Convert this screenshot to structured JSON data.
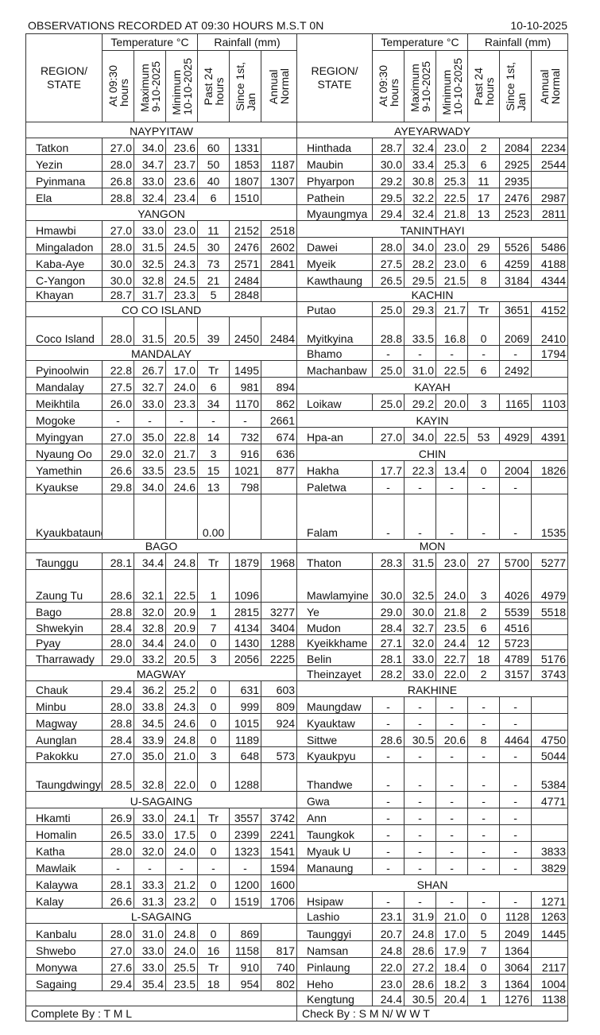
{
  "header": {
    "title": "OBSERVATIONS  RECORDED  AT  09:30  HOURS  M.S.T  0N",
    "date": "10-10-2025",
    "region_label": [
      "REGION/",
      "STATE"
    ],
    "temperature_label": "Temperature  °C",
    "rainfall_label": "Rainfall (mm)",
    "columns": [
      [
        "At 09:30",
        "hours"
      ],
      [
        "Maximum",
        "9-10-2025"
      ],
      [
        "Minimum",
        "10-10-2025"
      ],
      [
        "Past 24",
        "hours"
      ],
      [
        "Since 1st,",
        "Jan"
      ],
      [
        "Annual",
        "Normal"
      ]
    ]
  },
  "rows": [
    {
      "left": {
        "section": "NAYPYITAW"
      },
      "right": {
        "section": "AYEYARWADY"
      }
    },
    {
      "left": {
        "name": "Tatkon",
        "v": [
          "27.0",
          "34.0",
          "23.6",
          "60",
          "1331",
          ""
        ]
      },
      "right": {
        "name": "Hinthada",
        "v": [
          "28.7",
          "32.4",
          "23.0",
          "2",
          "2084",
          "2234"
        ]
      }
    },
    {
      "left": {
        "name": "Yezin",
        "v": [
          "28.0",
          "34.7",
          "23.7",
          "50",
          "1853",
          "1187"
        ]
      },
      "right": {
        "name": "Maubin",
        "v": [
          "30.0",
          "33.4",
          "25.3",
          "6",
          "2925",
          "2544"
        ]
      }
    },
    {
      "left": {
        "name": "Pyinmana",
        "v": [
          "26.8",
          "33.0",
          "23.6",
          "40",
          "1807",
          "1307"
        ]
      },
      "right": {
        "name": "Phyarpon",
        "v": [
          "29.2",
          "30.8",
          "25.3",
          "11",
          "2935",
          ""
        ]
      }
    },
    {
      "left": {
        "name": "Ela",
        "v": [
          "28.8",
          "32.4",
          "23.4",
          "6",
          "1510",
          ""
        ]
      },
      "right": {
        "name": "Pathein",
        "v": [
          "29.5",
          "32.2",
          "22.5",
          "17",
          "2476",
          "2987"
        ]
      }
    },
    {
      "left": {
        "section": "YANGON"
      },
      "right": {
        "name": "Myaungmya",
        "v": [
          "29.4",
          "32.4",
          "21.8",
          "13",
          "2523",
          "2811"
        ]
      }
    },
    {
      "left": {
        "name": "Hmawbi",
        "v": [
          "27.0",
          "33.0",
          "23.0",
          "11",
          "2152",
          "2518"
        ]
      },
      "right": {
        "section": "TANINTHAYI"
      }
    },
    {
      "left": {
        "name": "Mingaladon",
        "v": [
          "28.0",
          "31.5",
          "24.5",
          "30",
          "2476",
          "2602"
        ]
      },
      "right": {
        "name": "Dawei",
        "v": [
          "28.0",
          "34.0",
          "23.0",
          "29",
          "5526",
          "5486"
        ]
      }
    },
    {
      "left": {
        "name": "Kaba-Aye",
        "v": [
          "30.0",
          "32.5",
          "24.3",
          "73",
          "2571",
          "2841"
        ]
      },
      "right": {
        "name": "Myeik",
        "v": [
          "27.5",
          "28.2",
          "23.0",
          "6",
          "4259",
          "4188"
        ]
      }
    },
    {
      "left": {
        "name": "C-Yangon",
        "v": [
          "30.0",
          "32.8",
          "24.5",
          "21",
          "2484",
          ""
        ]
      },
      "right": {
        "name": "Kawthaung",
        "v": [
          "26.5",
          "29.5",
          "21.5",
          "8",
          "3184",
          "4344"
        ]
      }
    },
    {
      "left": {
        "name": "Khayan",
        "v": [
          "28.7",
          "31.7",
          "23.3",
          "5",
          "2848",
          ""
        ]
      },
      "right": {
        "section": "KACHIN"
      }
    },
    {
      "left": {
        "section": "CO CO  ISLAND"
      },
      "right": {
        "name": "Putao",
        "v": [
          "25.0",
          "29.3",
          "21.7",
          "Tr",
          "3651",
          "4152"
        ]
      }
    },
    {
      "left": {
        "name": "Coco Island",
        "v": [
          "28.0",
          "31.5",
          "20.5",
          "39",
          "2450",
          "2484"
        ]
      },
      "right": {
        "name": "Myitkyina",
        "v": [
          "28.8",
          "33.5",
          "16.8",
          "0",
          "2069",
          "2410"
        ]
      }
    },
    {
      "left": {
        "section": "MANDALAY"
      },
      "right": {
        "name": "Bhamo",
        "v": [
          "-",
          "-",
          "-",
          "-",
          "-",
          "1794"
        ]
      }
    },
    {
      "left": {
        "name": "Pyinoolwin",
        "v": [
          "22.8",
          "26.7",
          "17.0",
          "Tr",
          "1495",
          ""
        ]
      },
      "right": {
        "name": "Machanbaw",
        "v": [
          "25.0",
          "31.0",
          "22.5",
          "6",
          "2492",
          ""
        ]
      }
    },
    {
      "left": {
        "name": "Mandalay",
        "v": [
          "27.5",
          "32.7",
          "24.0",
          "6",
          "981",
          "894"
        ]
      },
      "right": {
        "section": "KAYAH"
      }
    },
    {
      "left": {
        "name": "Meikhtila",
        "v": [
          "26.0",
          "33.0",
          "23.3",
          "34",
          "1170",
          "862"
        ]
      },
      "right": {
        "name": "Loikaw",
        "v": [
          "25.0",
          "29.2",
          "20.0",
          "3",
          "1165",
          "1103"
        ]
      }
    },
    {
      "left": {
        "name": "Mogoke",
        "v": [
          "-",
          "-",
          "-",
          "-",
          "-",
          "2661"
        ]
      },
      "right": {
        "section": "KAYIN"
      }
    },
    {
      "left": {
        "name": "Myingyan",
        "v": [
          "27.0",
          "35.0",
          "22.8",
          "14",
          "732",
          "674"
        ]
      },
      "right": {
        "name": "Hpa-an",
        "v": [
          "27.0",
          "34.0",
          "22.5",
          "53",
          "4929",
          "4391"
        ]
      }
    },
    {
      "left": {
        "name": "Nyaung  Oo",
        "v": [
          "29.0",
          "32.0",
          "21.7",
          "3",
          "916",
          "636"
        ]
      },
      "right": {
        "section": "CHIN"
      }
    },
    {
      "left": {
        "name": "Yamethin",
        "v": [
          "26.6",
          "33.5",
          "23.5",
          "15",
          "1021",
          "877"
        ]
      },
      "right": {
        "name": "Hakha",
        "v": [
          "17.7",
          "22.3",
          "13.4",
          "0",
          "2004",
          "1826"
        ]
      }
    },
    {
      "left": {
        "name": "Kyaukse",
        "v": [
          "29.8",
          "34.0",
          "24.6",
          "13",
          "798",
          ""
        ]
      },
      "right": {
        "name": "Paletwa",
        "v": [
          "-",
          "-",
          "-",
          "-",
          "-",
          ""
        ]
      }
    },
    {
      "left": {
        "name": "Kyaukbataung",
        "v": [
          "",
          "",
          "",
          "0.00",
          "",
          ""
        ]
      },
      "right": {
        "name": "Falam",
        "v": [
          "-",
          "-",
          "-",
          "-",
          "-",
          "1535"
        ]
      }
    },
    {
      "left": {
        "section": "BAGO"
      },
      "right": {
        "section": "MON"
      }
    },
    {
      "left": {
        "name": "Taunggu",
        "v": [
          "28.1",
          "34.4",
          "24.8",
          "Tr",
          "1879",
          "1968"
        ]
      },
      "right": {
        "name": "Thaton",
        "v": [
          "28.3",
          "31.5",
          "23.0",
          "27",
          "5700",
          "5277"
        ]
      }
    },
    {
      "left": {
        "name": "Zaung  Tu",
        "v": [
          "28.6",
          "32.1",
          "22.5",
          "1",
          "1096",
          ""
        ]
      },
      "right": {
        "name": "Mawlamyine",
        "v": [
          "30.0",
          "32.5",
          "24.0",
          "3",
          "4026",
          "4979"
        ]
      }
    },
    {
      "left": {
        "name": "Bago",
        "v": [
          "28.8",
          "32.0",
          "20.9",
          "1",
          "2815",
          "3277"
        ]
      },
      "right": {
        "name": "Ye",
        "v": [
          "29.0",
          "30.0",
          "21.8",
          "2",
          "5539",
          "5518"
        ]
      }
    },
    {
      "left": {
        "name": "Shwekyin",
        "v": [
          "28.4",
          "32.8",
          "20.9",
          "7",
          "4134",
          "3404"
        ]
      },
      "right": {
        "name": "Mudon",
        "v": [
          "28.4",
          "32.7",
          "23.5",
          "6",
          "4516",
          ""
        ]
      }
    },
    {
      "left": {
        "name": "Pyay",
        "v": [
          "28.0",
          "34.4",
          "24.0",
          "0",
          "1430",
          "1288"
        ]
      },
      "right": {
        "name": "Kyeikkhame",
        "v": [
          "27.1",
          "32.0",
          "24.4",
          "12",
          "5723",
          ""
        ]
      }
    },
    {
      "left": {
        "name": "Tharrawady",
        "v": [
          "29.0",
          "33.2",
          "20.5",
          "3",
          "2056",
          "2225"
        ]
      },
      "right": {
        "name": "Belin",
        "v": [
          "28.1",
          "33.0",
          "22.7",
          "18",
          "4789",
          "5176"
        ]
      }
    },
    {
      "left": {
        "section": "MAGWAY"
      },
      "right": {
        "name": "Theinzayet",
        "v": [
          "28.2",
          "33.0",
          "22.0",
          "2",
          "3157",
          "3743"
        ]
      }
    },
    {
      "left": {
        "name": "Chauk",
        "v": [
          "29.4",
          "36.2",
          "25.2",
          "0",
          "631",
          "603"
        ]
      },
      "right": {
        "section": "RAKHINE"
      }
    },
    {
      "left": {
        "name": "Minbu",
        "v": [
          "28.0",
          "33.8",
          "24.3",
          "0",
          "999",
          "809"
        ]
      },
      "right": {
        "name": "Maungdaw",
        "v": [
          "-",
          "-",
          "-",
          "-",
          "-",
          ""
        ]
      }
    },
    {
      "left": {
        "name": "Magway",
        "v": [
          "28.8",
          "34.5",
          "24.6",
          "0",
          "1015",
          "924"
        ]
      },
      "right": {
        "name": "Kyauktaw",
        "v": [
          "-",
          "-",
          "-",
          "-",
          "-",
          ""
        ]
      }
    },
    {
      "left": {
        "name": "Aunglan",
        "v": [
          "28.4",
          "33.9",
          "24.8",
          "0",
          "1189",
          ""
        ]
      },
      "right": {
        "name": "Sittwe",
        "v": [
          "28.6",
          "30.5",
          "20.6",
          "8",
          "4464",
          "4750"
        ]
      }
    },
    {
      "left": {
        "name": "Pakokku",
        "v": [
          "27.0",
          "35.0",
          "21.0",
          "3",
          "648",
          "573"
        ]
      },
      "right": {
        "name": "Kyaukpyu",
        "v": [
          "-",
          "-",
          "-",
          "-",
          "-",
          "5044"
        ]
      }
    },
    {
      "left": {
        "name": "Taungdwingyi",
        "v": [
          "28.5",
          "32.8",
          "22.0",
          "0",
          "1288",
          ""
        ]
      },
      "right": {
        "name": "Thandwe",
        "v": [
          "-",
          "-",
          "-",
          "-",
          "-",
          "5384"
        ]
      }
    },
    {
      "left": {
        "section": "U-SAGAING"
      },
      "right": {
        "name": "Gwa",
        "v": [
          "-",
          "-",
          "-",
          "-",
          "-",
          "4771"
        ]
      }
    },
    {
      "left": {
        "name": "Hkamti",
        "v": [
          "26.9",
          "33.0",
          "24.1",
          "Tr",
          "3557",
          "3742"
        ]
      },
      "right": {
        "name": "Ann",
        "v": [
          "-",
          "-",
          "-",
          "-",
          "-",
          ""
        ]
      }
    },
    {
      "left": {
        "name": "Homalin",
        "v": [
          "26.5",
          "33.0",
          "17.5",
          "0",
          "2399",
          "2241"
        ]
      },
      "right": {
        "name": "Taungkok",
        "v": [
          "-",
          "-",
          "-",
          "-",
          "-",
          ""
        ]
      }
    },
    {
      "left": {
        "name": "Katha",
        "v": [
          "28.0",
          "32.0",
          "24.0",
          "0",
          "1323",
          "1541"
        ]
      },
      "right": {
        "name": "Myauk  U",
        "v": [
          "-",
          "-",
          "-",
          "-",
          "-",
          "3833"
        ]
      }
    },
    {
      "left": {
        "name": "Mawlaik",
        "v": [
          "-",
          "-",
          "-",
          "-",
          "-",
          "1594"
        ]
      },
      "right": {
        "name": "Manaung",
        "v": [
          "-",
          "-",
          "-",
          "-",
          "-",
          "3829"
        ]
      }
    },
    {
      "left": {
        "name": "Kalaywa",
        "v": [
          "28.1",
          "33.3",
          "21.2",
          "0",
          "1200",
          "1600"
        ]
      },
      "right": {
        "section": "SHAN"
      }
    },
    {
      "left": {
        "name": "Kalay",
        "v": [
          "26.6",
          "31.3",
          "23.2",
          "0",
          "1519",
          "1706"
        ]
      },
      "right": {
        "name": "Hsipaw",
        "v": [
          "-",
          "-",
          "-",
          "-",
          "-",
          "1271"
        ]
      }
    },
    {
      "left": {
        "section": "L-SAGAING"
      },
      "right": {
        "name": "Lashio",
        "v": [
          "23.1",
          "31.9",
          "21.0",
          "0",
          "1128",
          "1263"
        ]
      }
    },
    {
      "left": {
        "name": "Kanbalu",
        "v": [
          "28.0",
          "31.0",
          "24.8",
          "0",
          "869",
          ""
        ]
      },
      "right": {
        "name": "Taunggyi",
        "v": [
          "20.7",
          "24.8",
          "17.0",
          "5",
          "2049",
          "1445"
        ]
      }
    },
    {
      "left": {
        "name": "Shwebo",
        "v": [
          "27.0",
          "33.0",
          "24.0",
          "16",
          "1158",
          "817"
        ]
      },
      "right": {
        "name": "Namsan",
        "v": [
          "24.8",
          "28.6",
          "17.9",
          "7",
          "1364",
          ""
        ]
      }
    },
    {
      "left": {
        "name": "Monywa",
        "v": [
          "27.6",
          "33.0",
          "25.5",
          "Tr",
          "910",
          "740"
        ]
      },
      "right": {
        "name": "Pinlaung",
        "v": [
          "22.0",
          "27.2",
          "18.4",
          "0",
          "3064",
          "2117"
        ]
      }
    },
    {
      "left": {
        "name": "Sagaing",
        "v": [
          "29.4",
          "35.4",
          "23.5",
          "18",
          "954",
          "802"
        ]
      },
      "right": {
        "name": "Heho",
        "v": [
          "23.0",
          "28.6",
          "18.2",
          "3",
          "1364",
          "1004"
        ]
      }
    },
    {
      "left": {
        "blank": true
      },
      "right": {
        "name": "Kengtung",
        "v": [
          "24.4",
          "30.5",
          "20.4",
          "1",
          "1276",
          "1138"
        ]
      }
    }
  ],
  "footer": {
    "completed_by": "Complete By : T M L",
    "checked_by": "Check By :  S M N/ W W T"
  }
}
